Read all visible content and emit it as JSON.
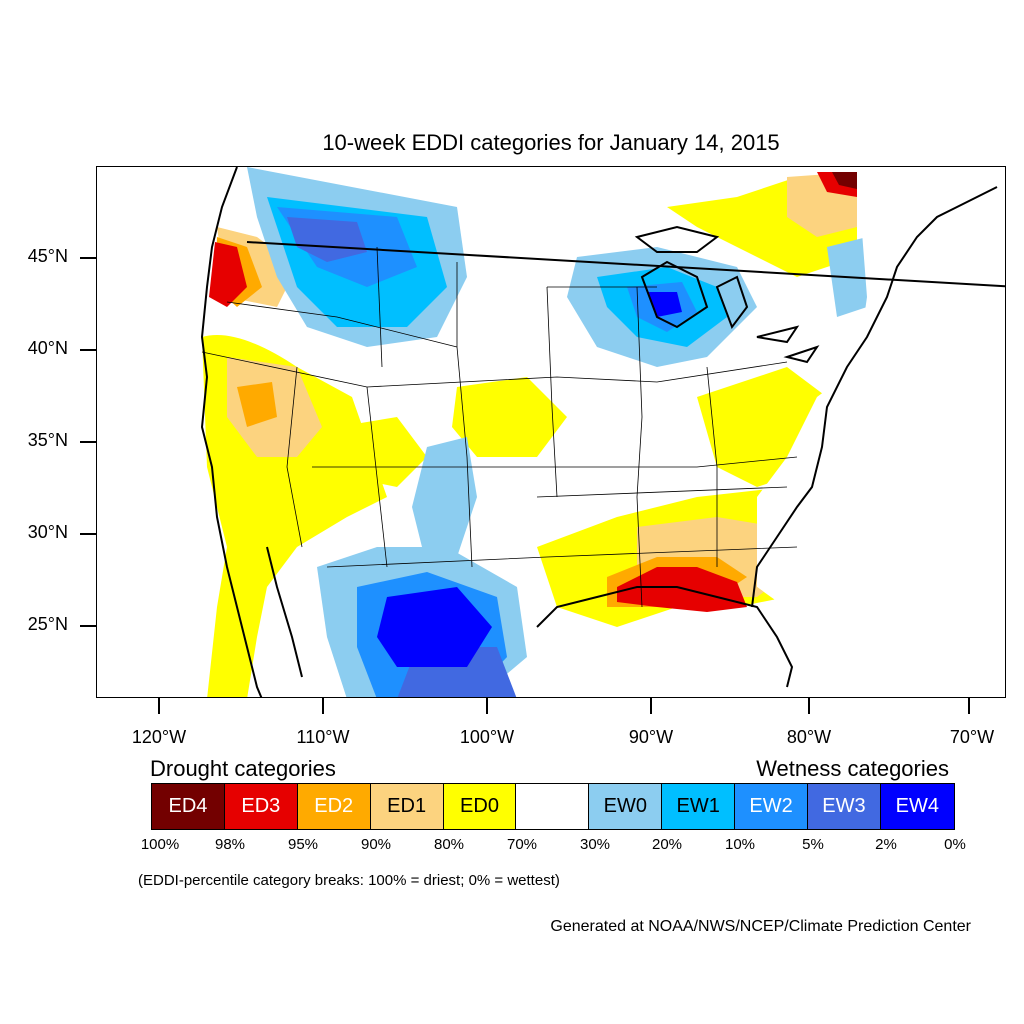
{
  "title": "10-week EDDI categories for January 14, 2015",
  "lat_labels": [
    "45°N",
    "40°N",
    "35°N",
    "30°N",
    "25°N"
  ],
  "lon_labels": [
    "120°W",
    "110°W",
    "100°W",
    "90°W",
    "80°W",
    "70°W"
  ],
  "legend": {
    "drought_heading": "Drought categories",
    "wetness_heading": "Wetness categories",
    "categories": [
      {
        "label": "ED4",
        "color": "#730000",
        "text_color": "#ffffff"
      },
      {
        "label": "ED3",
        "color": "#e60000",
        "text_color": "#ffffff"
      },
      {
        "label": "ED2",
        "color": "#ffaa00",
        "text_color": "#ffffff"
      },
      {
        "label": "ED1",
        "color": "#fcd37f",
        "text_color": "#000000"
      },
      {
        "label": "ED0",
        "color": "#ffff00",
        "text_color": "#000000"
      },
      {
        "label": "",
        "color": "#ffffff",
        "text_color": "#000000"
      },
      {
        "label": "EW0",
        "color": "#8ccdf0",
        "text_color": "#000000"
      },
      {
        "label": "EW1",
        "color": "#00bfff",
        "text_color": "#000000"
      },
      {
        "label": "EW2",
        "color": "#1e90ff",
        "text_color": "#ffffff"
      },
      {
        "label": "EW3",
        "color": "#4169e1",
        "text_color": "#ffffff"
      },
      {
        "label": "EW4",
        "color": "#0000ff",
        "text_color": "#ffffff"
      }
    ],
    "breaks": [
      "100%",
      "98%",
      "95%",
      "90%",
      "80%",
      "70%",
      "30%",
      "20%",
      "10%",
      "5%",
      "2%",
      "0%"
    ]
  },
  "note": "(EDDI-percentile category breaks: 100% = driest; 0% = wettest)",
  "credit": "Generated at NOAA/NWS/NCEP/Climate Prediction Center"
}
